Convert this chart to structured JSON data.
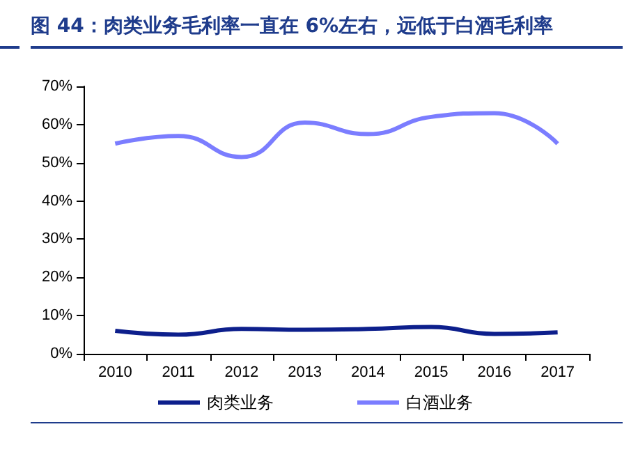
{
  "chart_data": {
    "type": "line",
    "title": "图 44：肉类业务毛利率一直在 6%左右，远低于白酒毛利率",
    "categories": [
      "2010",
      "2011",
      "2012",
      "2013",
      "2014",
      "2015",
      "2016",
      "2017"
    ],
    "series": [
      {
        "name": "肉类业务",
        "color": "#0d1f8c",
        "values": [
          6,
          5,
          6.5,
          6.3,
          6.5,
          7,
          5.2,
          5.6
        ]
      },
      {
        "name": "白酒业务",
        "color": "#7b7dff",
        "values": [
          55,
          57,
          51.5,
          60.5,
          57.5,
          62,
          63,
          55
        ]
      }
    ],
    "ylim": [
      0,
      70
    ],
    "yticks": [
      {
        "value": 0,
        "label": "0%"
      },
      {
        "value": 10,
        "label": "10%"
      },
      {
        "value": 20,
        "label": "20%"
      },
      {
        "value": 30,
        "label": "30%"
      },
      {
        "value": 40,
        "label": "40%"
      },
      {
        "value": 50,
        "label": "50%"
      },
      {
        "value": 60,
        "label": "60%"
      },
      {
        "value": 70,
        "label": "70%"
      }
    ],
    "legend": "bottom",
    "marker": "none",
    "line_style": "solid"
  }
}
